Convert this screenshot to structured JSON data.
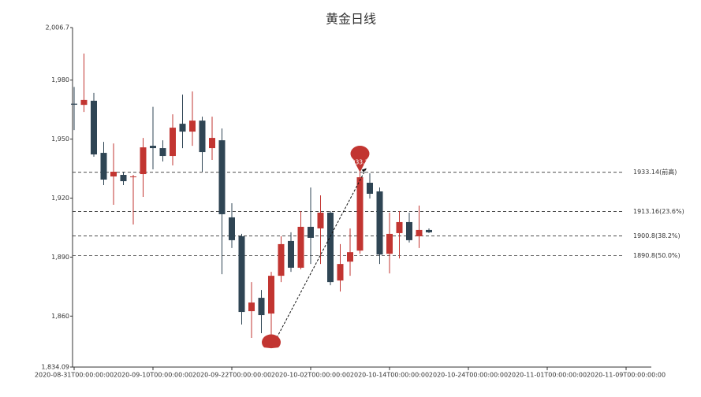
{
  "chart_data": {
    "type": "candlestick",
    "title": "黄金日线",
    "categories": [
      "2020-08-31T00:00:00:00",
      null,
      null,
      null,
      null,
      null,
      null,
      null,
      "2020-09-10T00:00:00:00",
      null,
      null,
      null,
      null,
      null,
      null,
      null,
      "2020-09-22T00:00:00:00",
      null,
      null,
      null,
      null,
      null,
      null,
      null,
      "2020-10-02T00:00:00:00",
      null,
      null,
      null,
      null,
      null,
      null,
      null,
      "2020-10-14T00:00:00:00",
      null,
      null,
      null,
      null,
      null,
      null,
      null,
      "2020-10-24T00:00:00:00",
      null,
      null,
      null,
      null,
      null,
      null,
      null,
      "2020-11-01T00:00:00:00",
      null,
      null,
      null,
      null,
      null,
      null,
      null,
      "2020-11-09T00:00:00:00",
      null,
      null
    ],
    "open": [
      1968,
      1967.4,
      1969.5,
      1943,
      1931,
      1931.8,
      1930.6,
      1932.2,
      1946.6,
      1945.4,
      1941.4,
      1957.8,
      1953.8,
      1959.4,
      1945.4,
      1949.4,
      1910.2,
      1900.6,
      1862.5,
      1869.3,
      1861.3,
      1880.5,
      1898.2,
      1884.6,
      1905.4,
      1904.6,
      1912.6,
      1878.1,
      1887.7,
      1893.3,
      1927.8,
      1923.4,
      1891.7,
      1902.2,
      1907.8,
      1900.6,
      1903.8,
      null,
      null,
      null,
      null,
      null,
      null,
      null,
      null,
      null,
      null,
      null,
      null,
      null,
      null,
      null,
      null,
      null,
      null,
      null,
      null,
      null,
      null
    ],
    "high": [
      1976.5,
      1993.5,
      1973.5,
      1948.6,
      1947.8,
      1933.4,
      1931.8,
      1950.6,
      1966.4,
      1949.4,
      1962.6,
      1972.6,
      1974.2,
      1961.4,
      1961.4,
      1955.4,
      1917.4,
      1901.8,
      1877.3,
      1873.3,
      1882.5,
      1900.6,
      1902.6,
      1913.4,
      1925.4,
      1921.4,
      1913.4,
      1896.6,
      1904.6,
      1933.14,
      1932.6,
      1925.4,
      1912.6,
      1913.4,
      1912.6,
      1916.2,
      1904.6,
      null,
      null,
      null,
      null,
      null,
      null,
      null,
      null,
      null,
      null,
      null,
      null,
      null,
      null,
      null,
      null,
      null,
      null,
      null,
      null,
      null,
      null
    ],
    "low": [
      1954.6,
      1963.8,
      1941,
      1926.6,
      1916.6,
      1926.6,
      1906.6,
      1920.6,
      1934.6,
      1938.6,
      1936.6,
      1945.4,
      1946.6,
      1933.4,
      1939.4,
      1881.3,
      1894.6,
      1855.7,
      1848.9,
      1851.3,
      1848.47,
      1877.3,
      1882.5,
      1883.8,
      1886.5,
      1886.5,
      1875.7,
      1872.5,
      1880.5,
      1891.7,
      1919.8,
      1886.5,
      1881.7,
      1889.3,
      1897.4,
      1894.6,
      1902.2,
      null,
      null,
      null,
      null,
      null,
      null,
      null,
      null,
      null,
      null,
      null,
      null,
      null,
      null,
      null,
      null,
      null,
      null,
      null,
      null,
      null,
      null
    ],
    "close": [
      1967.5,
      1969.9,
      1942.2,
      1929.4,
      1933.4,
      1928.6,
      1931,
      1945.8,
      1945.4,
      1941.4,
      1955.8,
      1953.8,
      1959.4,
      1943.4,
      1950.6,
      1911.8,
      1898.6,
      1862.1,
      1866.9,
      1860.5,
      1880.5,
      1896.6,
      1884.6,
      1905.4,
      1899.8,
      1912.6,
      1877.3,
      1886.5,
      1892.5,
      1930.6,
      1922.2,
      1891.3,
      1901.8,
      1907.8,
      1898.6,
      1903.8,
      1902.6,
      null,
      null,
      null,
      null,
      null,
      null,
      null,
      null,
      null,
      null,
      null,
      null,
      null,
      null,
      null,
      null,
      null,
      null,
      null,
      null,
      null,
      null
    ],
    "up_color": "#c23531",
    "down_color": "#2f4554",
    "ylim": [
      1834.09,
      2006.7
    ],
    "yticks": [
      {
        "value": 1834.09,
        "label": "1,834.09"
      },
      {
        "value": 1860,
        "label": "1,860"
      },
      {
        "value": 1890,
        "label": "1,890"
      },
      {
        "value": 1920,
        "label": "1,920"
      },
      {
        "value": 1950,
        "label": "1,950"
      },
      {
        "value": 1980,
        "label": "1,980"
      },
      {
        "value": 2006.7,
        "label": "2,006.7"
      }
    ],
    "hlines": [
      {
        "value": 1933.14,
        "label": "1933.14(前高)"
      },
      {
        "value": 1913.16,
        "label": "1913.16(23.6%)"
      },
      {
        "value": 1900.8,
        "label": "1900.8(38.2%)"
      },
      {
        "value": 1890.8,
        "label": "1890.8(50.0%)"
      }
    ],
    "markers": [
      1848.47,
      1933.14
    ]
  }
}
